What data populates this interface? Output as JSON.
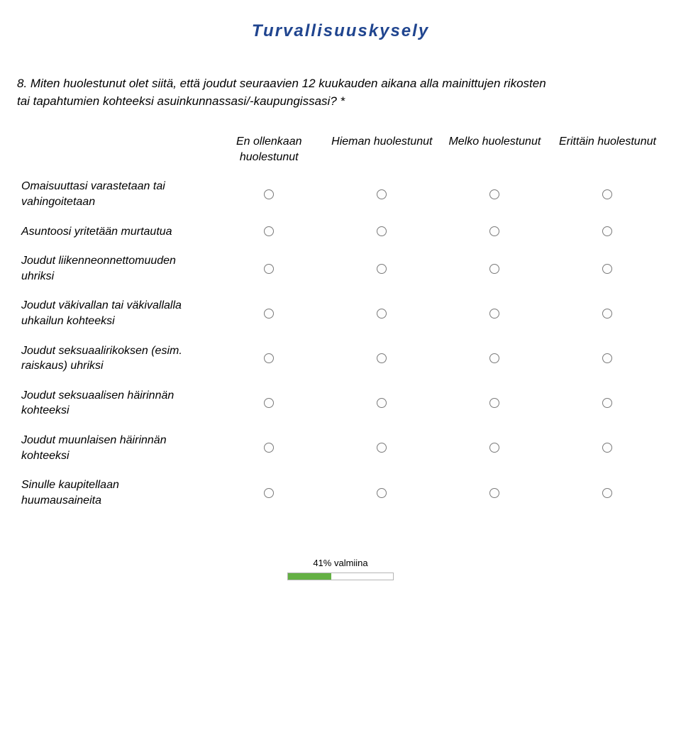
{
  "title": "Turvallisuuskysely",
  "question": {
    "number": "8.",
    "text": "Miten huolestunut olet siitä, että joudut seuraavien 12 kuukauden aikana alla mainittujen rikosten tai tapahtumien kohteeksi asuinkunnassasi/-kaupungissasi?",
    "marker": "*"
  },
  "columns": [
    "En ollenkaan huolestunut",
    "Hieman huolestunut",
    "Melko huolestunut",
    "Erittäin huolestunut"
  ],
  "rows": [
    "Omaisuuttasi varastetaan tai vahingoitetaan",
    "Asuntoosi yritetään murtautua",
    "Joudut liikenneonnettomuuden uhriksi",
    "Joudut väkivallan tai väkivallalla uhkailun kohteeksi",
    "Joudut seksuaalirikoksen (esim. raiskaus) uhriksi",
    "Joudut seksuaalisen häirinnän kohteeksi",
    "Joudut muunlaisen häirinnän kohteeksi",
    "Sinulle kaupitellaan huumausaineita"
  ],
  "progress": {
    "label": "41% valmiina",
    "percent": 41,
    "bar_color": "#64b044",
    "bar_bg": "#ffffff",
    "bar_border": "#b5b5b5"
  }
}
